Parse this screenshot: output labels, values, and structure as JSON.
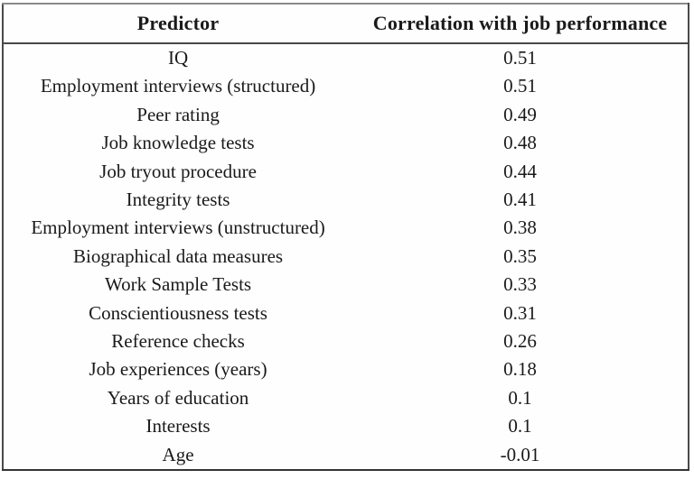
{
  "chart_data": {
    "type": "table",
    "title": "",
    "columns": [
      "Predictor",
      "Correlation with job performance"
    ],
    "rows": [
      {
        "predictor": "IQ",
        "value": "0.51"
      },
      {
        "predictor": "Employment interviews (structured)",
        "value": "0.51"
      },
      {
        "predictor": "Peer rating",
        "value": "0.49"
      },
      {
        "predictor": "Job knowledge tests",
        "value": "0.48"
      },
      {
        "predictor": "Job tryout procedure",
        "value": "0.44"
      },
      {
        "predictor": "Integrity tests",
        "value": "0.41"
      },
      {
        "predictor": "Employment interviews (unstructured)",
        "value": "0.38"
      },
      {
        "predictor": "Biographical data measures",
        "value": "0.35"
      },
      {
        "predictor": "Work Sample Tests",
        "value": "0.33"
      },
      {
        "predictor": "Conscientiousness tests",
        "value": "0.31"
      },
      {
        "predictor": "Reference checks",
        "value": "0.26"
      },
      {
        "predictor": "Job experiences (years)",
        "value": "0.18"
      },
      {
        "predictor": "Years of education",
        "value": "0.1"
      },
      {
        "predictor": "Interests",
        "value": "0.1"
      },
      {
        "predictor": "Age",
        "value": "-0.01"
      }
    ],
    "colors": {
      "text": "#1a1a1a",
      "background": "#ffffff",
      "border": "#4a4a4a"
    },
    "layout": {
      "column_alignment": [
        "center",
        "center"
      ],
      "header_bold": true,
      "gridlines": "outer-border-and-header-rule-only"
    }
  }
}
